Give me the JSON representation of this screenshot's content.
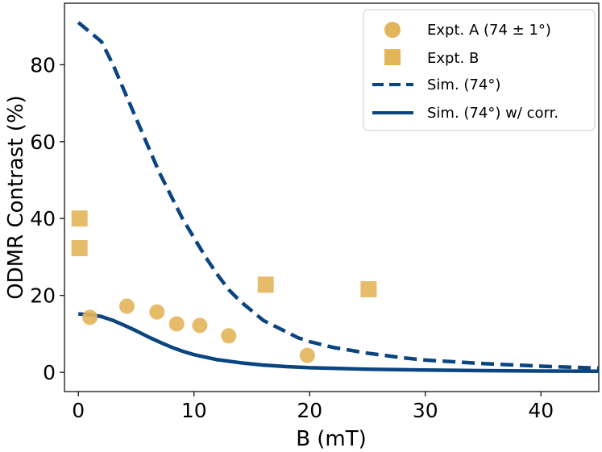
{
  "chart_data": {
    "type": "scatter",
    "title": "",
    "xlabel": "B (mT)",
    "ylabel": "ODMR Contrast (%)",
    "xlim": [
      -1.2,
      45
    ],
    "ylim": [
      -5,
      96
    ],
    "xticks": [
      0,
      10,
      20,
      30,
      40
    ],
    "yticks": [
      0,
      20,
      40,
      60,
      80
    ],
    "xtick_labels": [
      "0",
      "10",
      "20",
      "30",
      "40"
    ],
    "ytick_labels": [
      "0",
      "20",
      "40",
      "60",
      "80"
    ],
    "legend_position": "top-right",
    "colors": {
      "experiment": "#E3B55A",
      "simulation": "#0A4582"
    },
    "series": [
      {
        "name": "Expt. A (74 ± 1°)",
        "kind": "scatter",
        "marker": "circle",
        "x": [
          1.0,
          4.2,
          6.8,
          8.5,
          10.5,
          13.0,
          19.8
        ],
        "y": [
          14.3,
          17.2,
          15.7,
          12.6,
          12.2,
          9.5,
          4.4
        ]
      },
      {
        "name": "Expt. B",
        "kind": "scatter",
        "marker": "square",
        "x": [
          0.1,
          0.1,
          16.2,
          25.1
        ],
        "y": [
          40.0,
          32.3,
          22.8,
          21.6
        ]
      },
      {
        "name": "Sim. (74°)",
        "kind": "line",
        "style": "dashed",
        "x": [
          0,
          2,
          3,
          4,
          5,
          6,
          7,
          8,
          9,
          10,
          11,
          12,
          13,
          14,
          15,
          16,
          17,
          18,
          19,
          20,
          22,
          25,
          28,
          30,
          35,
          40,
          45
        ],
        "y": [
          91,
          86,
          80,
          73,
          66,
          59,
          52,
          46,
          40,
          35,
          30,
          25.5,
          21.5,
          18.5,
          16,
          13.5,
          12,
          10.5,
          9,
          8,
          6.5,
          5,
          3.8,
          3.2,
          2.3,
          1.6,
          1.1
        ]
      },
      {
        "name": "Sim. (74°) w/ corr.",
        "kind": "line",
        "style": "solid",
        "x": [
          0,
          1,
          2,
          3,
          4,
          5,
          6,
          7,
          8,
          9,
          10,
          12,
          14,
          16,
          18,
          20,
          25,
          30,
          35,
          40,
          45
        ],
        "y": [
          15.2,
          15.0,
          14.5,
          13.5,
          12.2,
          10.8,
          9.3,
          7.9,
          6.6,
          5.5,
          4.6,
          3.3,
          2.5,
          1.9,
          1.5,
          1.2,
          0.8,
          0.6,
          0.45,
          0.35,
          0.3
        ]
      }
    ]
  }
}
